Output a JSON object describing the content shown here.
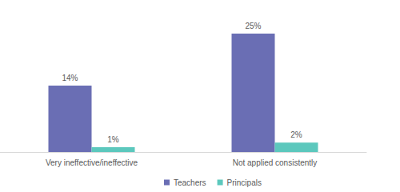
{
  "chart_data": {
    "type": "bar",
    "categories": [
      "Very ineffective/ineffective",
      "Not applied consistently"
    ],
    "series": [
      {
        "name": "Teachers",
        "color": "#6a6eb4",
        "values": [
          14,
          25
        ],
        "value_labels": [
          "14%",
          "25%"
        ]
      },
      {
        "name": "Principals",
        "color": "#5cc8bd",
        "values": [
          1,
          2
        ],
        "value_labels": [
          "1%",
          "2%"
        ]
      }
    ],
    "ylim": [
      0,
      25
    ],
    "yticks": [
      0,
      25
    ],
    "grid": false,
    "legend": "bottom",
    "data_labels": true,
    "tick_labels": "x"
  }
}
